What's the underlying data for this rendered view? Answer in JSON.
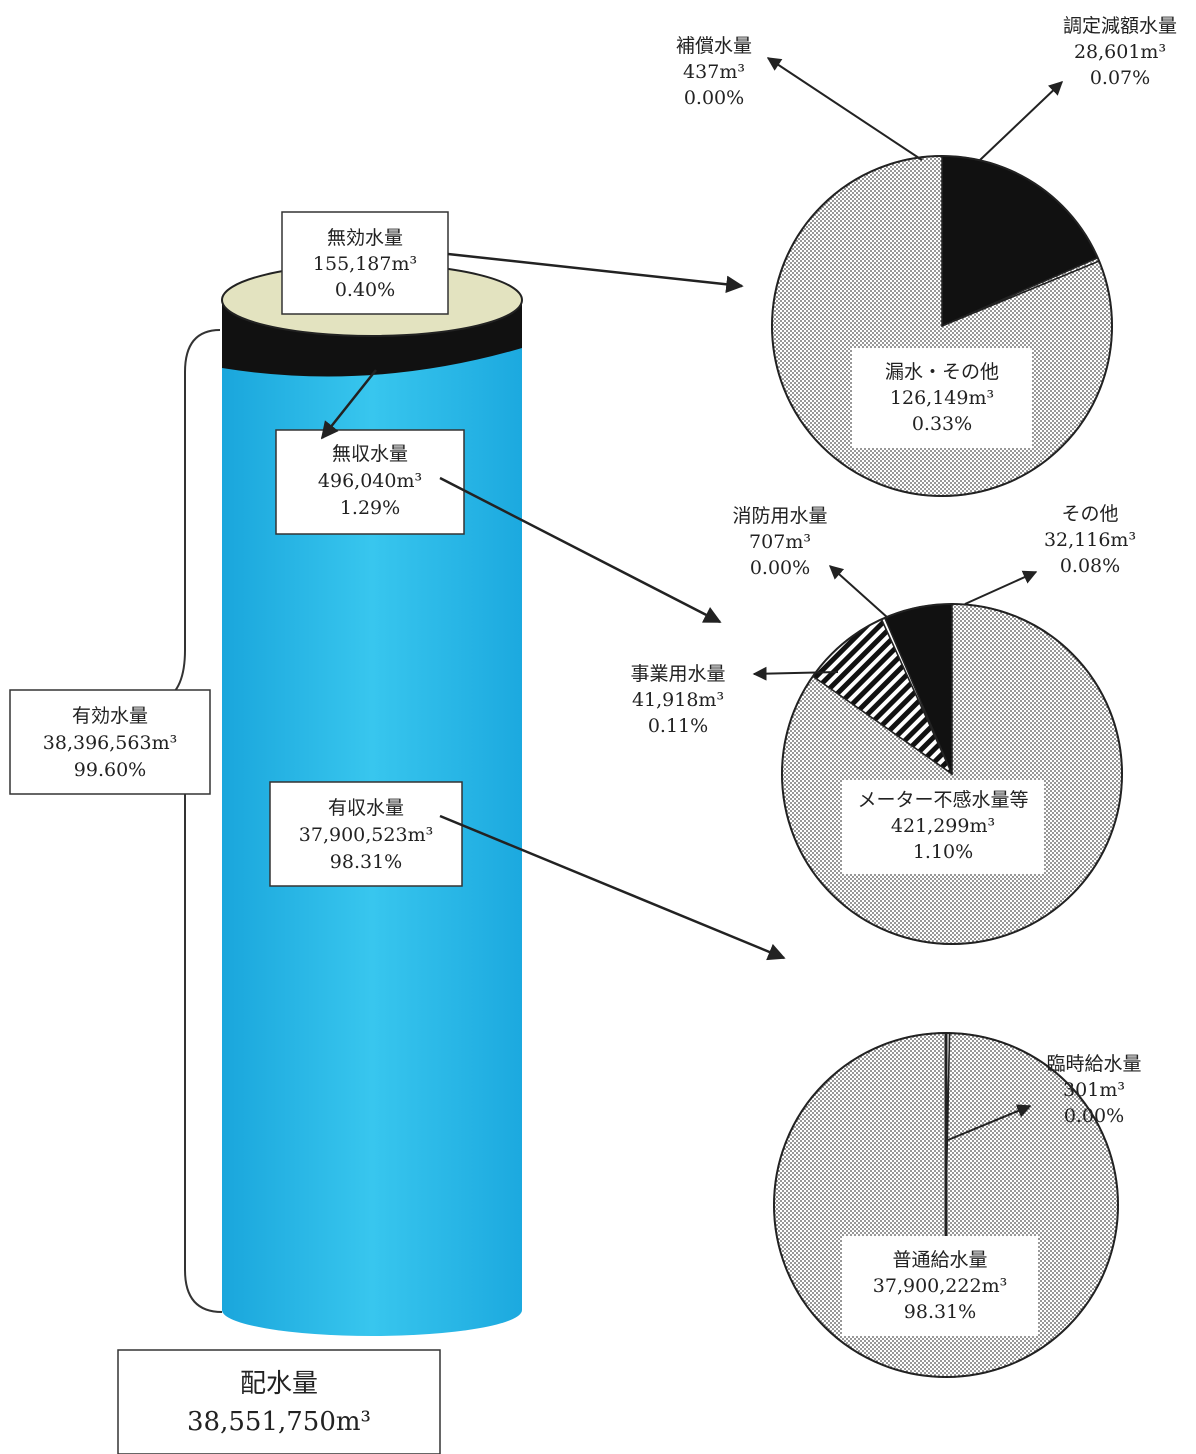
{
  "chart_data": [
    {
      "type": "pie",
      "labels": [
        "無効水量"
      ],
      "values": [
        155187
      ],
      "slices": [
        {
          "name": "調定減額水量",
          "value": "28,601",
          "unit": "m³",
          "percent": "0.07%"
        },
        {
          "name": "補償水量",
          "value": "437",
          "unit": "m³",
          "percent": "0.00%"
        },
        {
          "name": "漏水・その他",
          "value": "126,149",
          "unit": "m³",
          "percent": "0.33%"
        }
      ]
    },
    {
      "type": "pie",
      "labels": [
        "無収水量"
      ],
      "values": [
        496040
      ],
      "slices": [
        {
          "name": "その他",
          "value": "32,116",
          "unit": "m³",
          "percent": "0.08%"
        },
        {
          "name": "消防用水量",
          "value": "707",
          "unit": "m³",
          "percent": "0.00%"
        },
        {
          "name": "事業用水量",
          "value": "41,918",
          "unit": "m³",
          "percent": "0.11%"
        },
        {
          "name": "メーター不感水量等",
          "value": "421,299",
          "unit": "m³",
          "percent": "1.10%"
        }
      ]
    },
    {
      "type": "pie",
      "labels": [
        "有収水量"
      ],
      "values": [
        37900523
      ],
      "slices": [
        {
          "name": "臨時給水量",
          "value": "301",
          "unit": "m³",
          "percent": "0.00%"
        },
        {
          "name": "普通給水量",
          "value": "37,900,222",
          "unit": "m³",
          "percent": "98.31%"
        }
      ]
    }
  ],
  "cylinder": {
    "total": {
      "name": "配水量",
      "value": "38,551,750",
      "unit": "m³"
    },
    "effective": {
      "name": "有効水量",
      "value": "38,396,563",
      "unit": "m³",
      "percent": "99.60%"
    },
    "invalid": {
      "name": "無効水量",
      "value": "155,187",
      "unit": "m³",
      "percent": "0.40%"
    },
    "unbilled": {
      "name": "無収水量",
      "value": "496,040",
      "unit": "m³",
      "percent": "1.29%"
    },
    "billed": {
      "name": "有収水量",
      "value": "37,900,523",
      "unit": "m³",
      "percent": "98.31%"
    }
  },
  "colors": {
    "cylinder": "#29b9e6",
    "cap": "#e3e3c0",
    "band": "#111111",
    "dots": "#555555"
  }
}
